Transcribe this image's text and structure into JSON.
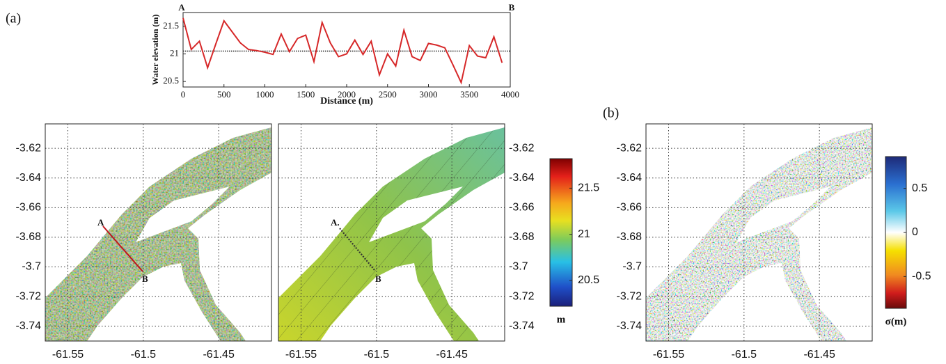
{
  "chart_data": [
    {
      "type": "line",
      "panel": "(a)",
      "ylabel": "Water elevation (m)",
      "xlabel": "Distance (m)",
      "annotations": [
        "A",
        "B"
      ],
      "color": "#d62728",
      "x": [
        0,
        100,
        200,
        300,
        400,
        500,
        600,
        700,
        800,
        900,
        1000,
        1100,
        1200,
        1300,
        1400,
        1500,
        1600,
        1700,
        1800,
        1900,
        2000,
        2100,
        2200,
        2300,
        2400,
        2500,
        2600,
        2700,
        2800,
        2900,
        3000,
        3100,
        3200,
        3300,
        3400,
        3500,
        3600,
        3700,
        3800,
        3900
      ],
      "values": [
        21.65,
        21.08,
        21.23,
        20.75,
        21.18,
        21.6,
        21.4,
        21.2,
        21.08,
        21.06,
        21.03,
        20.99,
        21.36,
        21.04,
        21.28,
        21.34,
        20.86,
        21.57,
        21.2,
        20.95,
        21.0,
        21.25,
        20.99,
        21.23,
        20.62,
        21.0,
        20.78,
        21.43,
        20.95,
        20.88,
        21.19,
        21.16,
        21.11,
        20.8,
        20.48,
        21.15,
        20.96,
        20.93,
        21.31,
        20.84
      ],
      "reference_line": 21.05,
      "xlim": [
        0,
        4000
      ],
      "ylim": [
        20.4,
        21.75
      ],
      "xticks": [
        0,
        500,
        1000,
        1500,
        2000,
        2500,
        3000,
        3500,
        4000
      ],
      "yticks": [
        20.5,
        21,
        21.5
      ]
    },
    {
      "type": "heatmap",
      "profile_labels": [
        "A",
        "B"
      ],
      "xlim": [
        -61.565,
        -61.415
      ],
      "ylim": [
        -3.75,
        -3.6035
      ],
      "xticks": [
        -61.55,
        -61.5,
        -61.45
      ],
      "yticks": [
        -3.62,
        -3.64,
        -3.66,
        -3.68,
        -3.7,
        -3.72,
        -3.74
      ]
    },
    {
      "type": "heatmap",
      "profile_labels": [
        "A.",
        "B"
      ],
      "xlim": [
        -61.565,
        -61.415
      ],
      "ylim": [
        -3.75,
        -3.6035
      ],
      "xticks": [
        -61.55,
        -61.5,
        -61.45
      ],
      "yticks": [
        -3.62,
        -3.64,
        -3.66,
        -3.68,
        -3.7,
        -3.72,
        -3.74
      ],
      "colorbar": {
        "label": "m",
        "lim": [
          20.22,
          21.82
        ],
        "ticks": [
          20.5,
          21,
          21.5
        ]
      }
    },
    {
      "type": "heatmap",
      "panel": "(b)",
      "xlim": [
        -61.565,
        -61.415
      ],
      "ylim": [
        -3.75,
        -3.6035
      ],
      "xticks": [
        -61.55,
        -61.5,
        -61.45
      ],
      "yticks": [
        -3.62,
        -3.64,
        -3.66,
        -3.68,
        -3.7,
        -3.72,
        -3.74
      ],
      "colorbar": {
        "label": "σ(m)",
        "lim": [
          -0.86,
          0.86
        ],
        "ticks": [
          -0.5,
          0,
          0.5
        ]
      }
    }
  ]
}
